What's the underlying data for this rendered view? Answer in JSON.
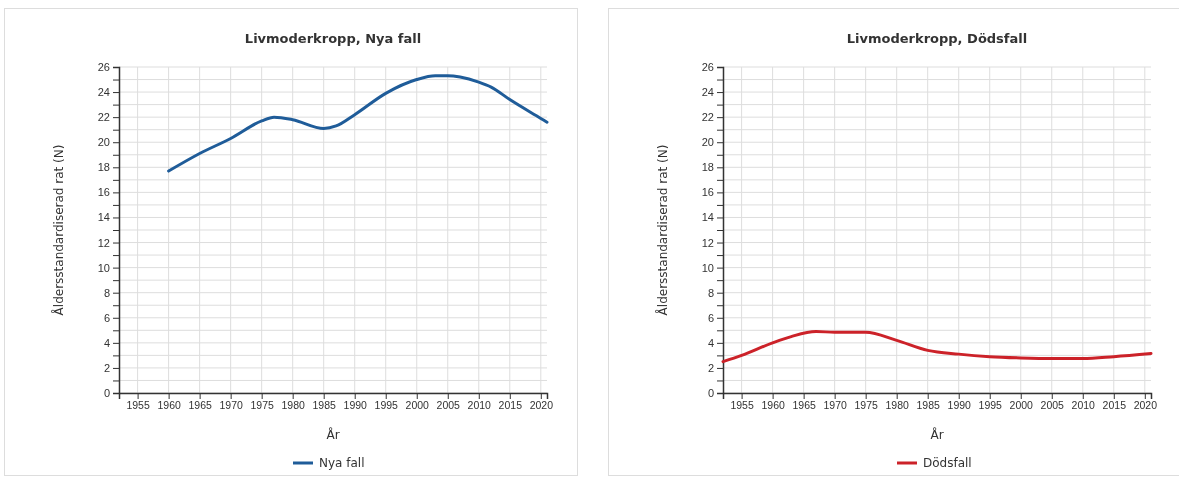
{
  "chart_data": [
    {
      "type": "line",
      "title": "Livmoderkropp, Nya fall",
      "xlabel": "År",
      "ylabel": "Åldersstandardiserad rat (N)",
      "xlim": [
        1952,
        2021
      ],
      "xticks": [
        1955,
        1960,
        1965,
        1970,
        1975,
        1980,
        1985,
        1990,
        1995,
        2000,
        2005,
        2010,
        2015,
        2020
      ],
      "ylim": [
        0,
        26
      ],
      "yticks": [
        0,
        {
          "value": 1,
          "label": null
        },
        2,
        {
          "value": 3,
          "label": null
        },
        4,
        {
          "value": 5,
          "label": null
        },
        6,
        {
          "value": 7,
          "label": null
        },
        8,
        {
          "value": 9,
          "label": null
        },
        10,
        {
          "value": 11,
          "label": null
        },
        12,
        {
          "value": 13,
          "label": null
        },
        14,
        {
          "value": 15,
          "label": null
        },
        16,
        {
          "value": 17,
          "label": null
        },
        18,
        {
          "value": 19,
          "label": null
        },
        20,
        {
          "value": 21,
          "label": null
        },
        22,
        {
          "value": 23,
          "label": null
        },
        24,
        {
          "value": 25,
          "label": null
        },
        26
      ],
      "grid": true,
      "legend": "bottom",
      "marker": "none",
      "line_style": "solid",
      "series": [
        {
          "name": "Nya fall",
          "color": "#1f5c99",
          "x": [
            1960,
            1965,
            1970,
            1975,
            1977,
            1980,
            1985,
            1987,
            1990,
            1995,
            2000,
            2003,
            2005,
            2007,
            2010,
            2012,
            2015,
            2020,
            2021
          ],
          "values": [
            17.7,
            19.1,
            20.3,
            21.7,
            22.0,
            21.8,
            21.1,
            21.3,
            22.2,
            23.9,
            25.0,
            25.3,
            25.3,
            25.2,
            24.8,
            24.4,
            23.4,
            21.9,
            21.6
          ]
        }
      ]
    },
    {
      "type": "line",
      "title": "Livmoderkropp, Dödsfall",
      "xlabel": "År",
      "ylabel": "Åldersstandardiserad rat (N)",
      "xlim": [
        1952,
        2021
      ],
      "xticks": [
        1955,
        1960,
        1965,
        1970,
        1975,
        1980,
        1985,
        1990,
        1995,
        2000,
        2005,
        2010,
        2015,
        2020
      ],
      "ylim": [
        0,
        26
      ],
      "yticks": [
        0,
        {
          "value": 1,
          "label": null
        },
        2,
        {
          "value": 3,
          "label": null
        },
        4,
        {
          "value": 5,
          "label": null
        },
        6,
        {
          "value": 7,
          "label": null
        },
        8,
        {
          "value": 9,
          "label": null
        },
        10,
        {
          "value": 11,
          "label": null
        },
        12,
        {
          "value": 13,
          "label": null
        },
        14,
        {
          "value": 15,
          "label": null
        },
        16,
        {
          "value": 17,
          "label": null
        },
        18,
        {
          "value": 19,
          "label": null
        },
        20,
        {
          "value": 21,
          "label": null
        },
        22,
        {
          "value": 23,
          "label": null
        },
        24,
        {
          "value": 25,
          "label": null
        },
        26
      ],
      "grid": true,
      "legend": "bottom",
      "marker": "none",
      "line_style": "solid",
      "series": [
        {
          "name": "Dödsfall",
          "color": "#cc2229",
          "x": [
            1952,
            1955,
            1960,
            1963,
            1967,
            1970,
            1975,
            1980,
            1985,
            1990,
            1995,
            2000,
            2005,
            2010,
            2015,
            2021
          ],
          "values": [
            2.5,
            3.0,
            4.0,
            4.5,
            4.9,
            4.85,
            4.85,
            4.2,
            3.4,
            3.1,
            2.9,
            2.8,
            2.75,
            2.75,
            2.9,
            3.15
          ]
        }
      ]
    }
  ]
}
